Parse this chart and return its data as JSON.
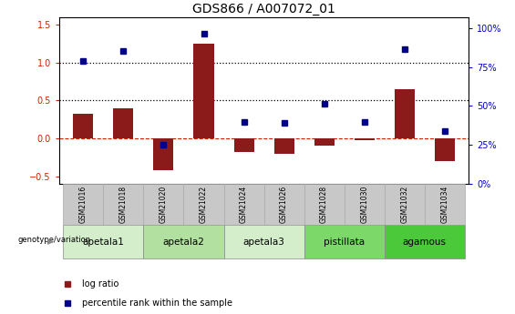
{
  "title": "GDS866 / A007072_01",
  "samples": [
    "GSM21016",
    "GSM21018",
    "GSM21020",
    "GSM21022",
    "GSM21024",
    "GSM21026",
    "GSM21028",
    "GSM21030",
    "GSM21032",
    "GSM21034"
  ],
  "log_ratio": [
    0.33,
    0.4,
    -0.42,
    1.25,
    -0.18,
    -0.2,
    -0.1,
    -0.02,
    0.65,
    -0.3
  ],
  "percentile_rank_left": [
    1.02,
    1.15,
    -0.09,
    1.38,
    0.22,
    0.2,
    0.46,
    0.22,
    1.18,
    0.1
  ],
  "groups": [
    {
      "label": "apetala1",
      "start": 0,
      "end": 1,
      "color": "#d4eecc"
    },
    {
      "label": "apetala2",
      "start": 2,
      "end": 3,
      "color": "#b2e0a0"
    },
    {
      "label": "apetala3",
      "start": 4,
      "end": 5,
      "color": "#d4eecc"
    },
    {
      "label": "pistillata",
      "start": 6,
      "end": 7,
      "color": "#7dd86a"
    },
    {
      "label": "agamous",
      "start": 8,
      "end": 9,
      "color": "#4cc93a"
    }
  ],
  "ylim_left": [
    -0.6,
    1.6
  ],
  "ylim_right": [
    0,
    107
  ],
  "right_ticks": [
    0,
    25,
    50,
    75,
    100
  ],
  "right_tick_labels": [
    "0%",
    "25%",
    "50%",
    "75%",
    "100%"
  ],
  "left_ticks": [
    -0.5,
    0.0,
    0.5,
    1.0,
    1.5
  ],
  "dotted_lines": [
    0.5,
    1.0
  ],
  "bar_color": "#8B1a1a",
  "dot_color": "#00008B",
  "zero_line_color": "#cc2200",
  "bar_width": 0.5,
  "genotype_label": "genotype/variation",
  "legend_bar": "log ratio",
  "legend_dot": "percentile rank within the sample",
  "title_fontsize": 10,
  "tick_fontsize": 7,
  "sample_box_color": "#c8c8c8",
  "sample_box_edge": "#aaaaaa",
  "left_tick_color": "#cc2200",
  "right_tick_color": "#0000cc"
}
